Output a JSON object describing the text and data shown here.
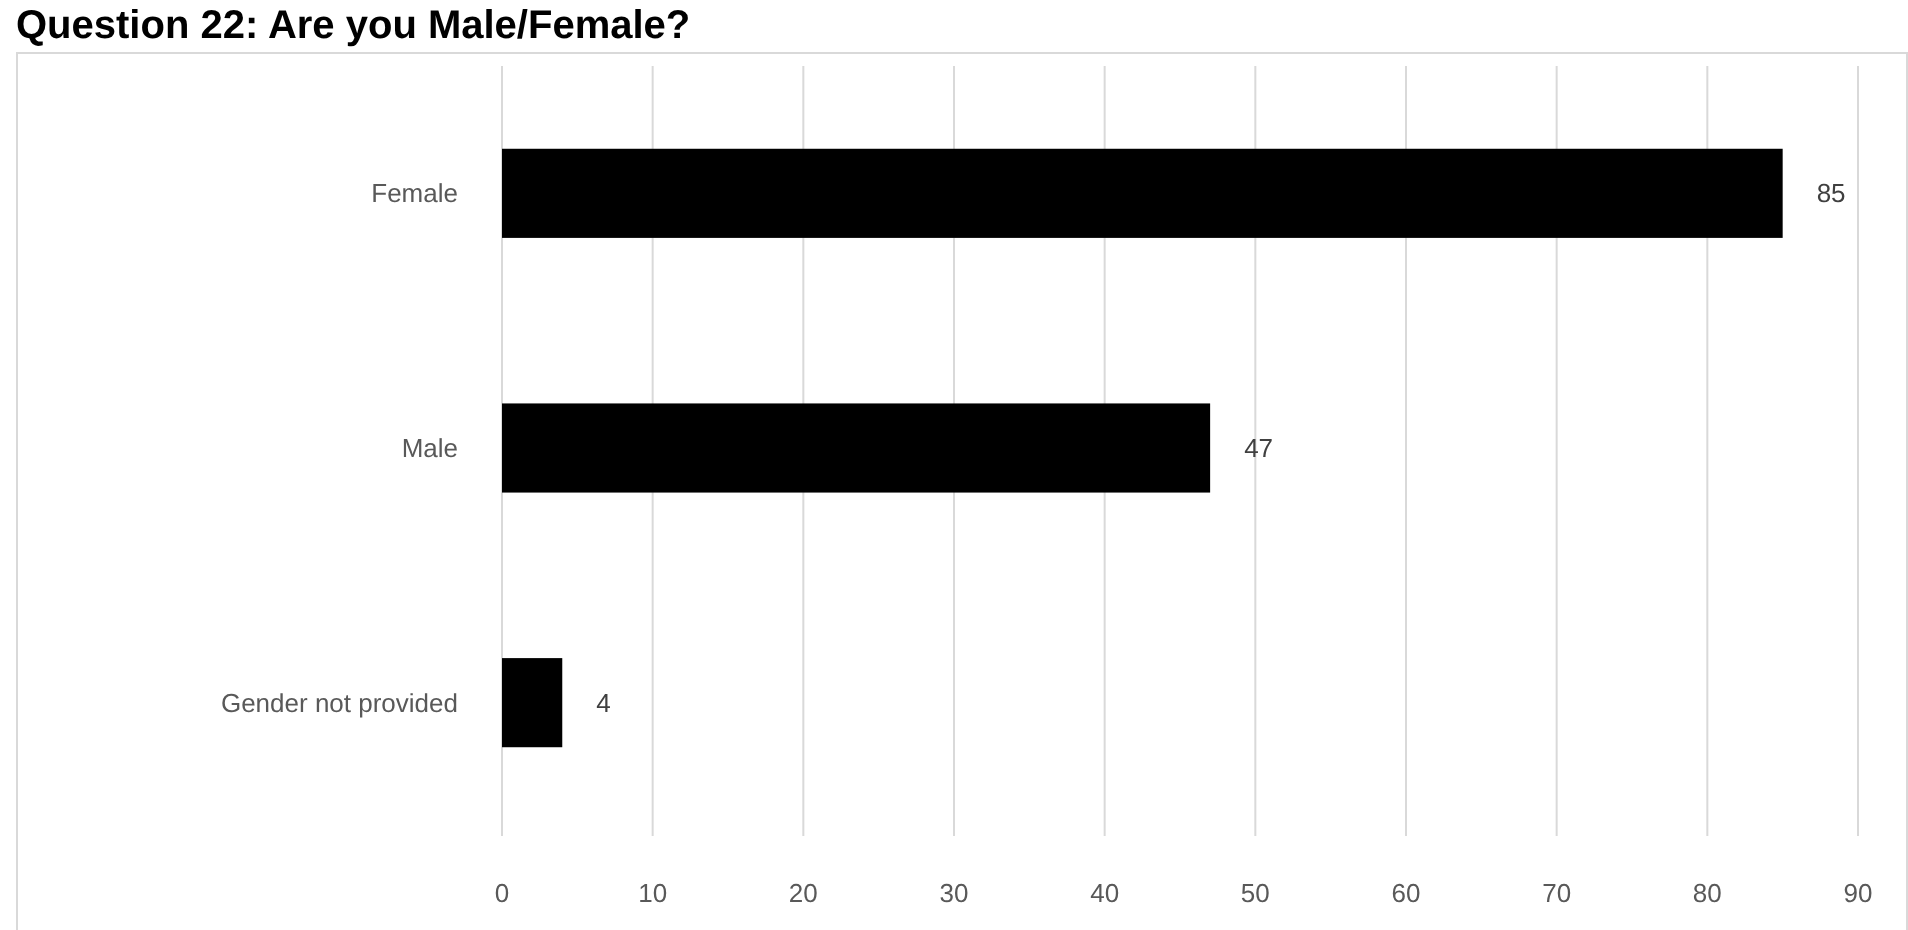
{
  "chart_data": {
    "type": "bar",
    "title": "Question 22: Are you Male/Female?",
    "categories": [
      "Female",
      "Male",
      "Gender not provided"
    ],
    "values": [
      85,
      47,
      4
    ],
    "color": "#000000",
    "orientation": "horizontal",
    "xlim": [
      0,
      90
    ],
    "xticks": [
      0,
      10,
      20,
      30,
      40,
      50,
      60,
      70,
      80,
      90
    ],
    "grid": "x",
    "data_labels": true
  }
}
